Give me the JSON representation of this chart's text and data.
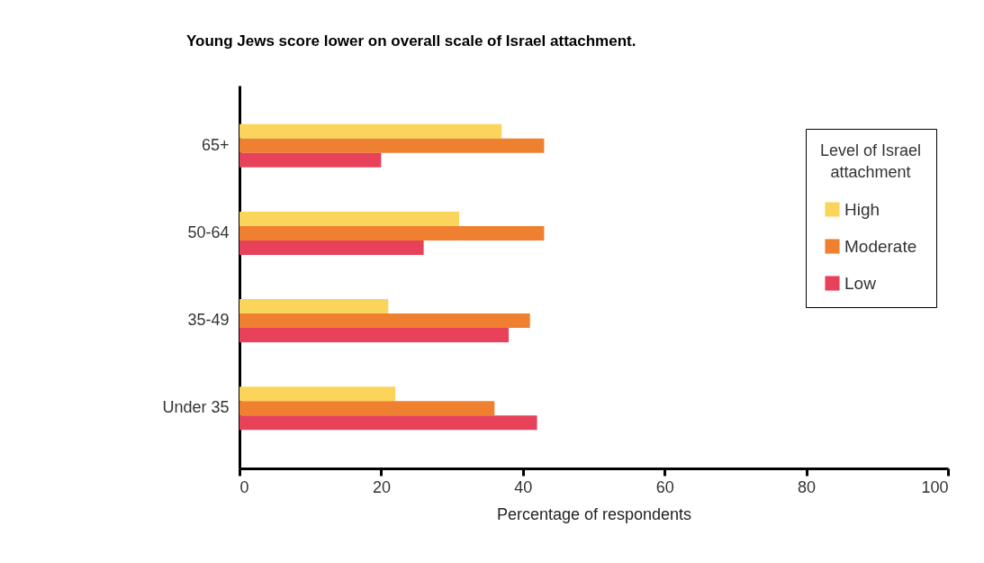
{
  "chart_data": {
    "type": "bar",
    "orientation": "horizontal",
    "title": "Young Jews score lower on overall scale of Israel attachment.",
    "xlabel": "Percentage of respondents",
    "legend_title": "Level of Israel attachment",
    "categories": [
      "65+",
      "50-64",
      "35-49",
      "Under 35"
    ],
    "series": [
      {
        "name": "High",
        "color": "#fbd45c",
        "values": [
          37,
          31,
          21,
          22
        ]
      },
      {
        "name": "Moderate",
        "color": "#ef8030",
        "values": [
          43,
          43,
          41,
          36
        ]
      },
      {
        "name": "Low",
        "color": "#e8415a",
        "values": [
          20,
          26,
          38,
          42
        ]
      }
    ],
    "xlim": [
      0,
      100
    ],
    "xticks": [
      0,
      20,
      40,
      60,
      80,
      100
    ],
    "grid": false,
    "legend": "top right"
  }
}
